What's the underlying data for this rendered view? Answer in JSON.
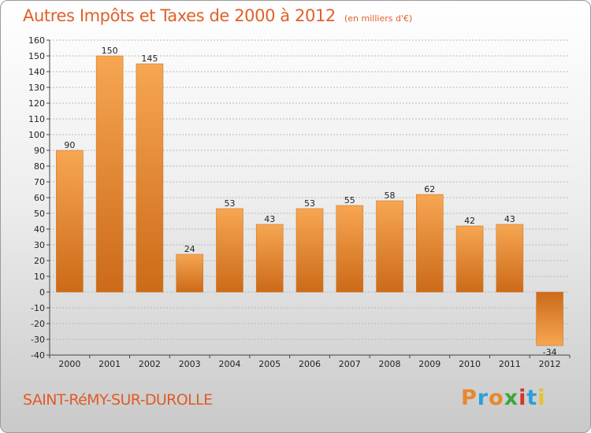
{
  "chart_data": {
    "type": "bar",
    "title": "Autres Impôts et Taxes de 2000 à 2012",
    "subtitle": "(en milliers d'€)",
    "categories": [
      "2000",
      "2001",
      "2002",
      "2003",
      "2004",
      "2005",
      "2006",
      "2007",
      "2008",
      "2009",
      "2010",
      "2011",
      "2012"
    ],
    "values": [
      90,
      150,
      145,
      24,
      53,
      43,
      53,
      55,
      58,
      62,
      42,
      43,
      -34
    ],
    "ylim": [
      -40,
      160
    ],
    "ytick_step": 10,
    "grid": true,
    "bar_color": "#e8872e"
  },
  "footer": {
    "place": "SAINT-RéMY-SUR-DUROLLE",
    "brand": "Proxiti",
    "brand_colors": [
      "#e8872e",
      "#2aa0d8",
      "#e8872e",
      "#3aa83a",
      "#d8302a",
      "#2aa0d8",
      "#e8c02a"
    ]
  }
}
